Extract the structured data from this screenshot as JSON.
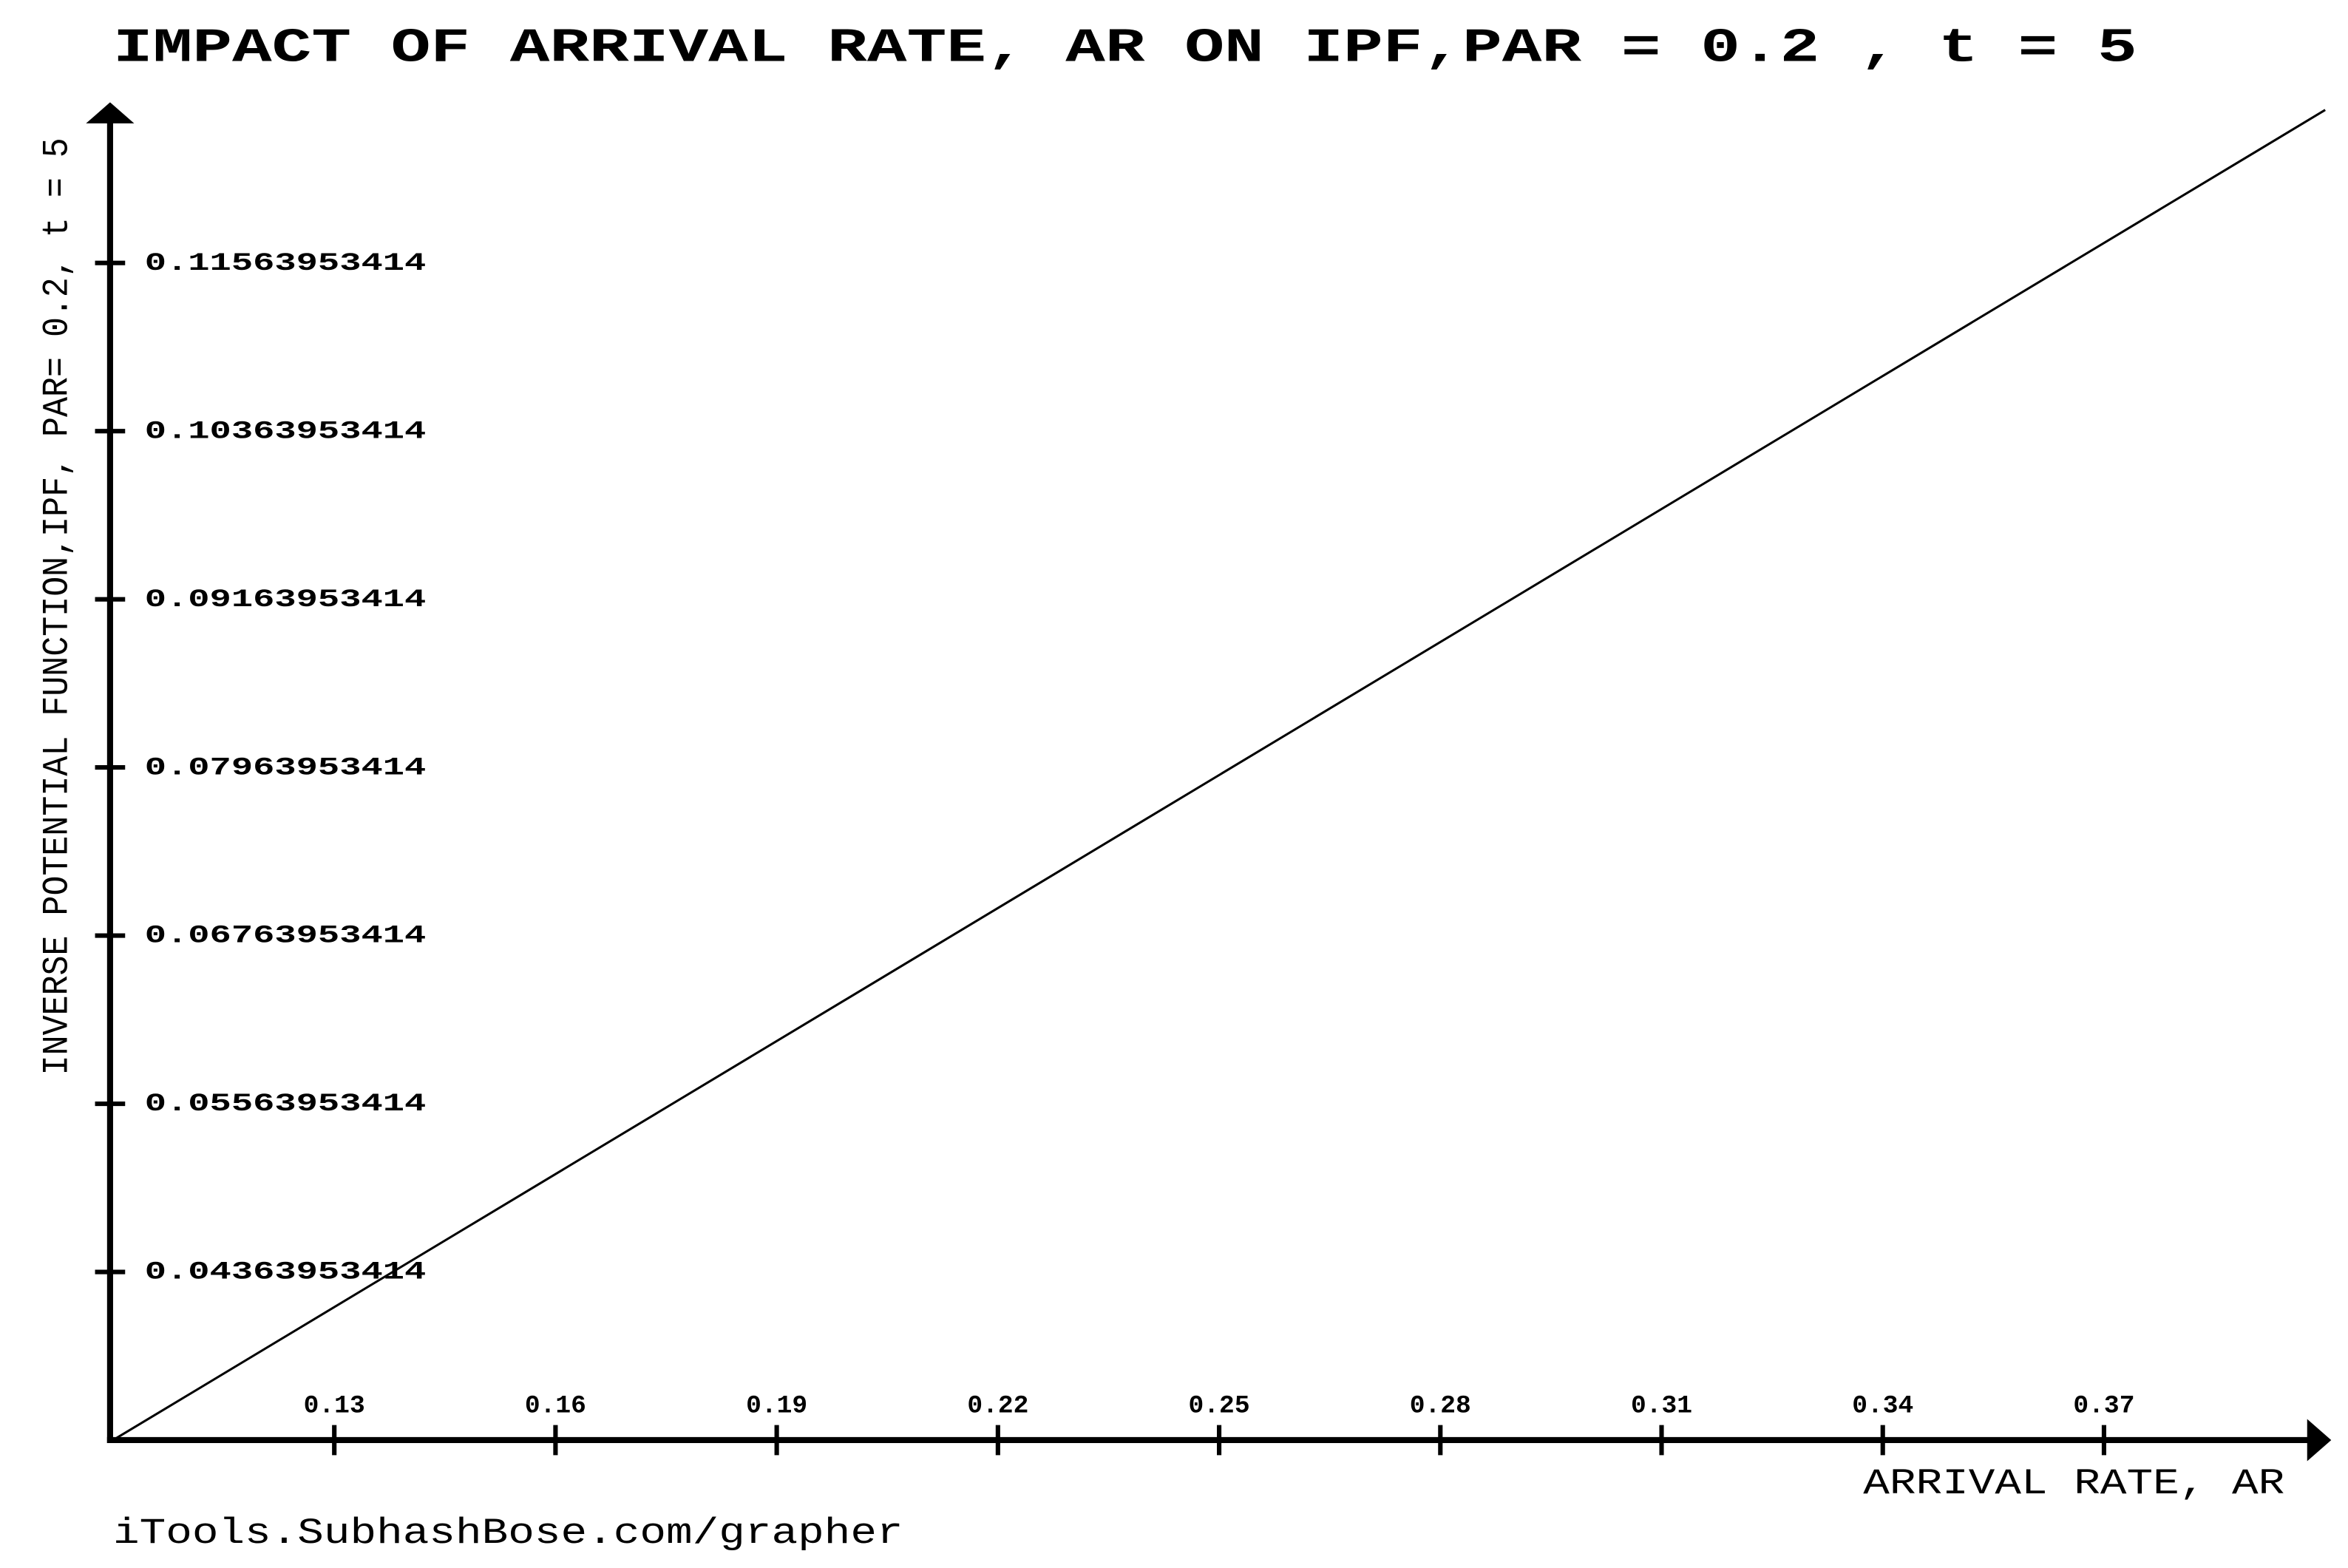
{
  "chart_data": {
    "type": "line",
    "title": "IMPACT OF ARRIVAL RATE, AR ON IPF,PAR = 0.2 , t = 5",
    "x_label": "ARRIVAL RATE, AR",
    "y_label": "INVERSE POTENTIAL FUNCTION,IPF, PAR= 0.2, t = 5",
    "footer": "iTools.SubhashBose.com/grapher",
    "x": [
      0.1,
      0.4
    ],
    "values": [
      0.03163953414,
      0.12655813656
    ],
    "color": "#000000",
    "xlim": [
      0.1,
      0.4
    ],
    "xticks": [
      0.13,
      0.16,
      0.19,
      0.22,
      0.25,
      0.28,
      0.31,
      0.34,
      0.37
    ],
    "ylim": [
      0.03163953414,
      0.12763953414
    ],
    "yticks": [
      0.04363953414,
      0.05563953414,
      0.06763953414,
      0.07963953414,
      0.09163953414,
      0.10363953414,
      0.11563953414
    ],
    "grid": false
  }
}
